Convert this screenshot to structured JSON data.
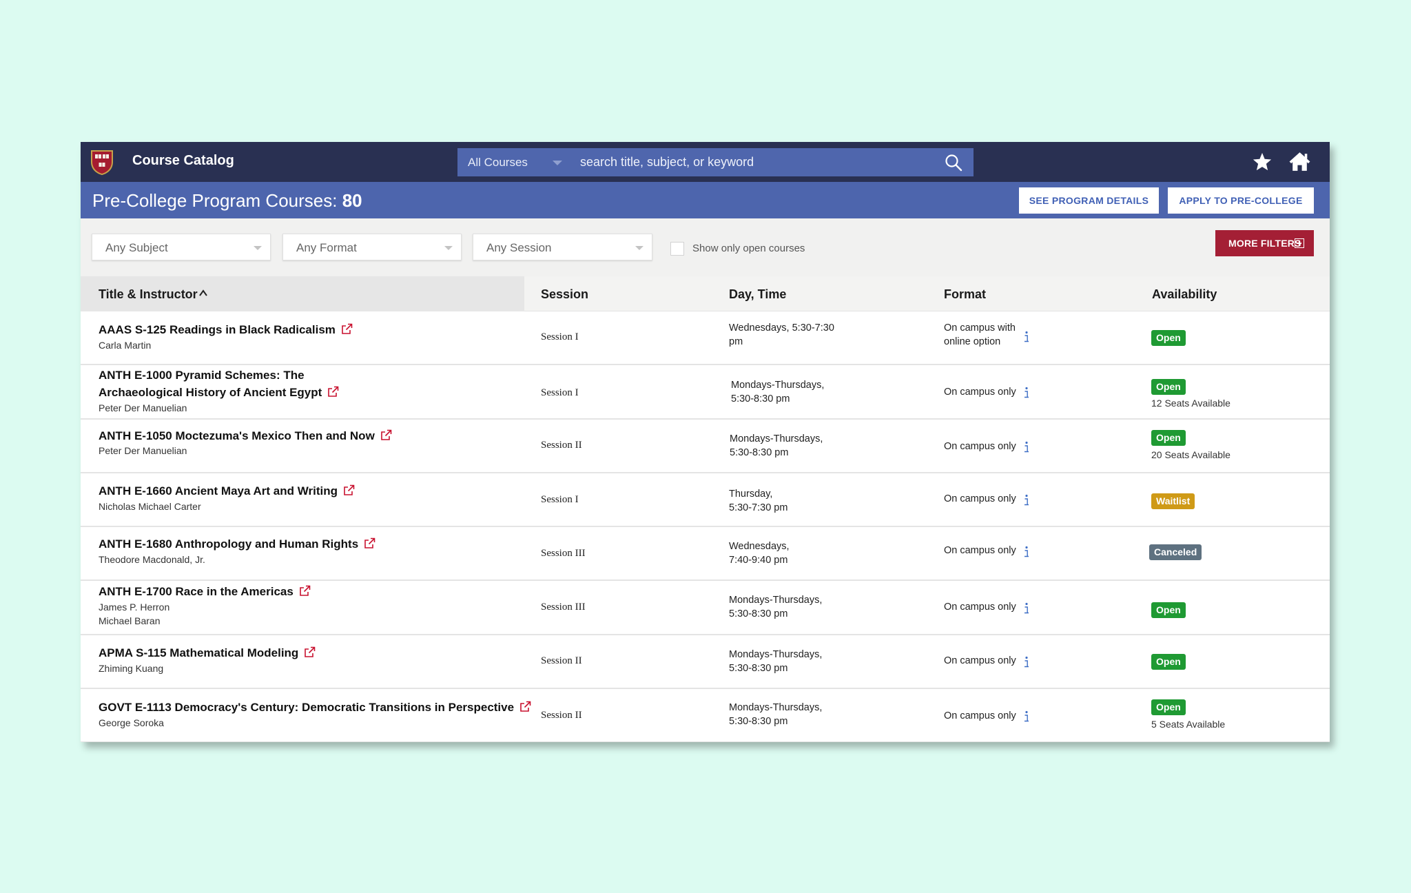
{
  "header": {
    "app_title": "Course Catalog",
    "scope_select": "All Courses",
    "search_placeholder": "search title, subject, or keyword"
  },
  "program": {
    "title_prefix": "Pre-College Program Courses:",
    "count": "80",
    "details_button": "SEE PROGRAM DETAILS",
    "apply_button": "APPLY TO PRE-COLLEGE"
  },
  "filters": {
    "subject": "Any Subject",
    "format": "Any Format",
    "session": "Any Session",
    "open_only_label": "Show only open courses",
    "more_filters": "MORE FILTERS"
  },
  "table": {
    "headers": {
      "title": "Title & Instructor",
      "session": "Session",
      "daytime": "Day, Time",
      "format": "Format",
      "availability": "Availability"
    },
    "rows": [
      {
        "title": "AAAS S-125 Readings in Black Radicalism",
        "instructors": [
          "Carla Martin"
        ],
        "session": "Session I",
        "day": "Wednesdays, 5:30-7:30",
        "time": "pm",
        "format_1": "On campus with",
        "format_2": "online option",
        "status": "Open",
        "seats": ""
      },
      {
        "title_1": "ANTH E-1000 Pyramid Schemes: The",
        "title_2": "Archaeological History of Ancient Egypt",
        "instructors": [
          "Peter Der Manuelian"
        ],
        "session": "Session I",
        "day": "Mondays-Thursdays,",
        "time": "5:30-8:30 pm",
        "format_1": "On campus only",
        "status": "Open",
        "seats": "12 Seats Available"
      },
      {
        "title": "ANTH E-1050 Moctezuma's Mexico Then and Now",
        "instructors": [
          "Peter Der Manuelian"
        ],
        "session": "Session II",
        "day": "Mondays-Thursdays,",
        "time": "5:30-8:30 pm",
        "format_1": "On campus only",
        "status": "Open",
        "seats": "20 Seats Available"
      },
      {
        "title": "ANTH E-1660 Ancient Maya Art and Writing",
        "instructors": [
          "Nicholas Michael Carter"
        ],
        "session": "Session I",
        "day": "Thursday,",
        "time": "5:30-7:30 pm",
        "format_1": "On campus only",
        "status": "Waitlist",
        "seats": ""
      },
      {
        "title": "ANTH E-1680 Anthropology and Human Rights",
        "instructors": [
          "Theodore Macdonald, Jr."
        ],
        "session": "Session III",
        "day": "Wednesdays,",
        "time": "7:40-9:40 pm",
        "format_1": "On campus only",
        "status": "Canceled",
        "seats": ""
      },
      {
        "title": "ANTH E-1700 Race in the Americas",
        "instructors": [
          "James P. Herron",
          "Michael Baran"
        ],
        "session": "Session III",
        "day": "Mondays-Thursdays,",
        "time": "5:30-8:30 pm",
        "format_1": "On campus only",
        "status": "Open",
        "seats": ""
      },
      {
        "title": "APMA S-115 Mathematical Modeling",
        "instructors": [
          "Zhiming Kuang"
        ],
        "session": "Session II",
        "day": "Mondays-Thursdays,",
        "time": "5:30-8:30 pm",
        "format_1": "On campus only",
        "status": "Open",
        "seats": ""
      },
      {
        "title": "GOVT E-1113 Democracy's Century: Democratic Transitions in Perspective",
        "instructors": [
          "George Soroka"
        ],
        "session": "Session II",
        "day": "Mondays-Thursdays,",
        "time": "5:30-8:30 pm",
        "format_1": "On campus only",
        "status": "Open",
        "seats": "5 Seats Available"
      }
    ]
  },
  "colors": {
    "navy": "#293052",
    "program_blue": "#4d65ad",
    "accent_red": "#a41f35",
    "open_green": "#1f9a33",
    "waitlist_gold": "#cf9a17",
    "canceled_gray": "#5e7180"
  },
  "icons": [
    "shield-logo-icon",
    "chevron-down-icon",
    "search-icon",
    "star-icon",
    "home-icon",
    "plus-square-icon",
    "sort-up-icon",
    "external-link-icon",
    "info-icon"
  ]
}
